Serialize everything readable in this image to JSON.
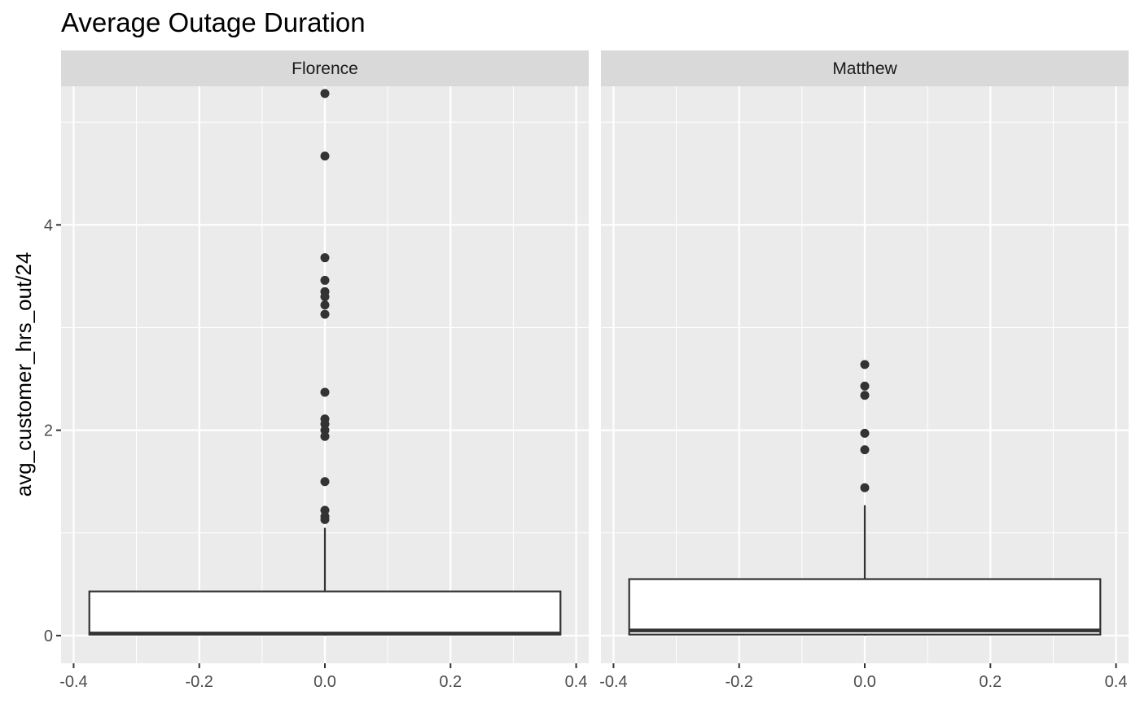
{
  "chart_data": {
    "type": "boxplot",
    "title": "Average Outage Duration",
    "ylabel": "avg_customer_hrs_out/24",
    "xlabel": "",
    "grid": true,
    "facet_layout": "1 row, 2 columns",
    "xlim": [
      -0.42,
      0.42
    ],
    "ylim": [
      -0.27,
      5.35
    ],
    "x_ticks": [
      -0.4,
      -0.2,
      0.0,
      0.2,
      0.4
    ],
    "x_tick_labels": [
      "-0.4",
      "-0.2",
      "0.0",
      "0.2",
      "0.4"
    ],
    "y_ticks": [
      0,
      2,
      4
    ],
    "y_tick_labels": [
      "0",
      "2",
      "4"
    ],
    "box_x_range": [
      -0.375,
      0.375
    ],
    "colors": {
      "panel_bg": "#ebebeb",
      "strip_bg": "#d9d9d9",
      "grid": "#ffffff",
      "box_fill": "#ffffff",
      "box_line": "#333333",
      "outlier": "#333333"
    },
    "panels": [
      {
        "label": "Florence",
        "box": {
          "lower": 0.0,
          "q1": 0.01,
          "median": 0.02,
          "q3": 0.43,
          "upper": 1.05
        },
        "outliers": [
          5.28,
          4.67,
          3.68,
          3.46,
          3.35,
          3.3,
          3.22,
          3.13,
          2.37,
          2.11,
          2.06,
          2.0,
          1.94,
          1.5,
          1.22,
          1.16,
          1.13
        ]
      },
      {
        "label": "Matthew",
        "box": {
          "lower": 0.0,
          "q1": 0.01,
          "median": 0.05,
          "q3": 0.55,
          "upper": 1.27
        },
        "outliers": [
          2.64,
          2.43,
          2.34,
          1.97,
          1.81,
          1.44
        ]
      }
    ]
  }
}
